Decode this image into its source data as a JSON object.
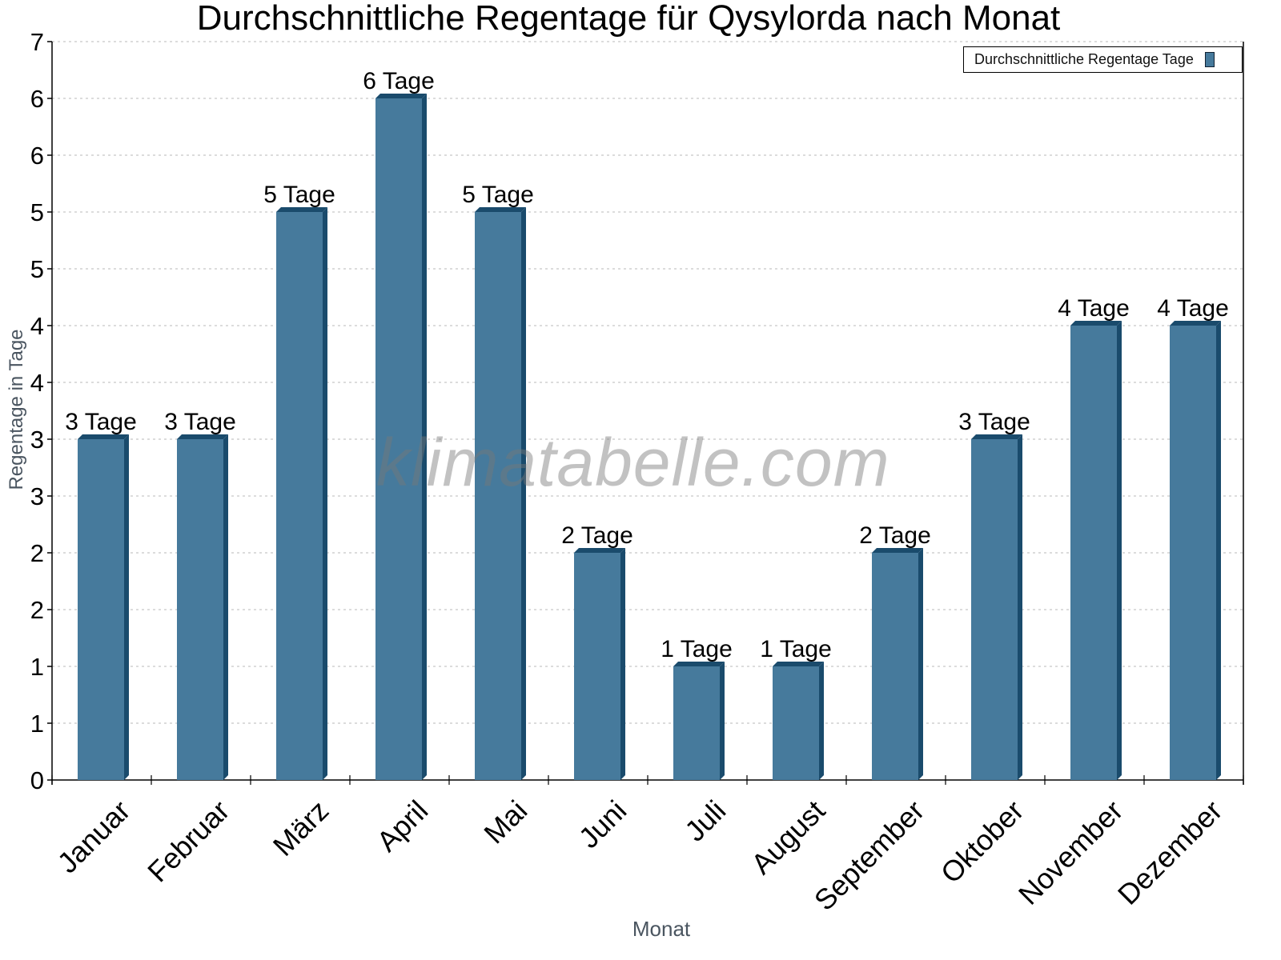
{
  "chart_data": {
    "type": "bar",
    "title": "Durchschnittliche Regentage für Qysylorda nach Monat",
    "xlabel": "Monat",
    "ylabel": "Regentage in Tage",
    "categories": [
      "Januar",
      "Februar",
      "März",
      "April",
      "Mai",
      "Juni",
      "Juli",
      "August",
      "September",
      "Oktober",
      "November",
      "Dezember"
    ],
    "series": [
      {
        "name": "Durchschnittliche Regentage Tage",
        "values": [
          3,
          3,
          5,
          6,
          5,
          2,
          1,
          1,
          2,
          3,
          4,
          4
        ],
        "data_labels": [
          "3 Tage",
          "3 Tage",
          "5 Tage",
          "6 Tage",
          "5 Tage",
          "2 Tage",
          "1 Tage",
          "1 Tage",
          "2 Tage",
          "3 Tage",
          "4 Tage",
          "4 Tage"
        ]
      }
    ],
    "ylim": [
      0,
      6.5
    ],
    "y_ticks": [
      0,
      0.5,
      1,
      1.5,
      2,
      2.5,
      3,
      3.5,
      4,
      4.5,
      5,
      5.5,
      6,
      6.5
    ],
    "y_tick_labels": [
      "0",
      "1",
      "1",
      "2",
      "2",
      "3",
      "3",
      "4",
      "4",
      "5",
      "5",
      "6",
      "6",
      "7"
    ],
    "grid": true,
    "legend_position": "top-right",
    "colors": {
      "bar_front": "#467a9c",
      "bar_side": "#1a4b6c",
      "grid": "#c8c8c8",
      "axis": "#000000"
    }
  },
  "watermark": "klimatabelle.com"
}
